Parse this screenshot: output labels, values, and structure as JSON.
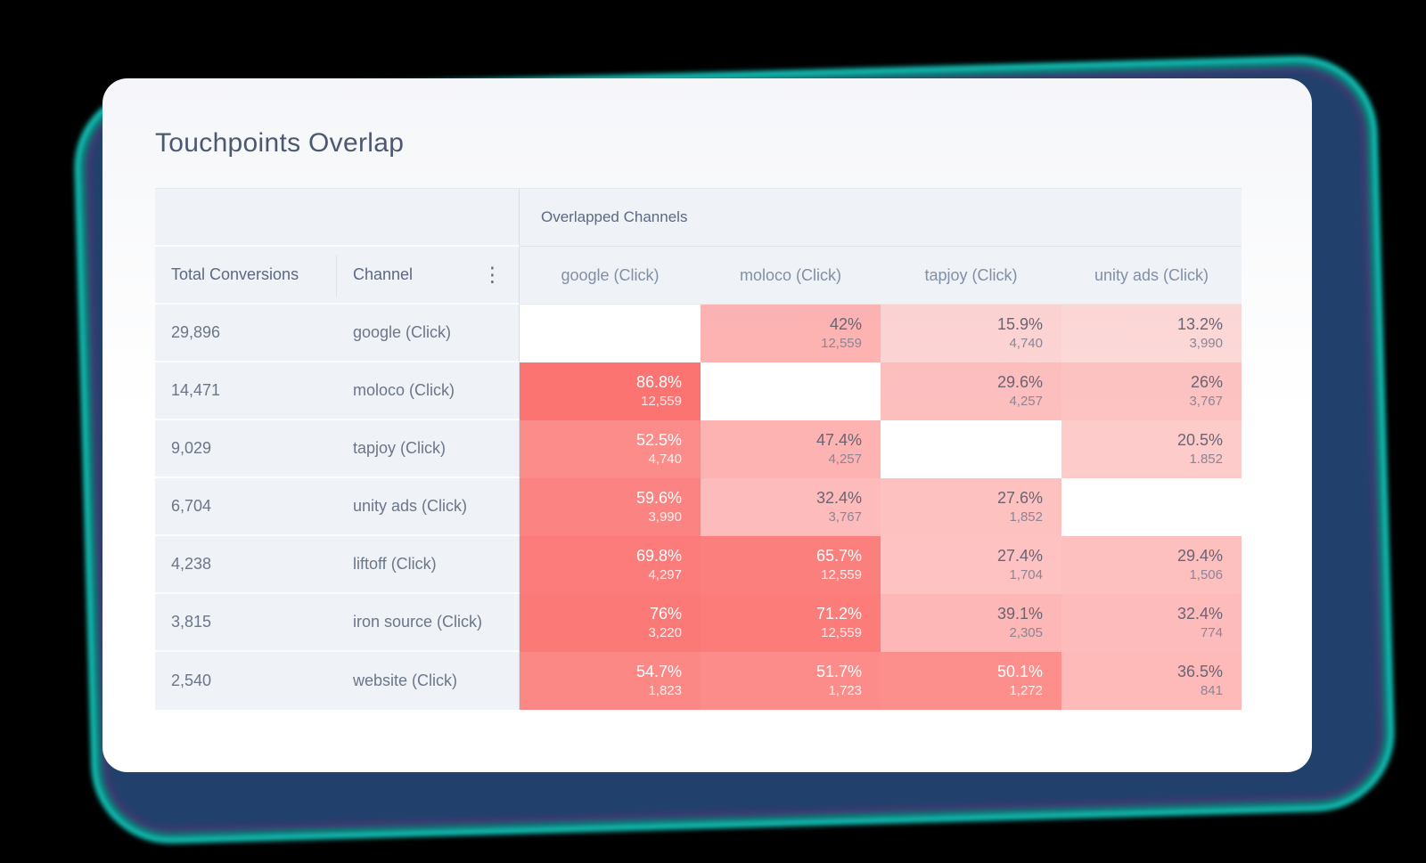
{
  "card": {
    "title": "Touchpoints Overlap"
  },
  "table": {
    "left_headers": {
      "total": "Total Conversions",
      "channel": "Channel"
    },
    "group_header": "Overlapped Channels",
    "kebab_icon": "⋮",
    "columns": [
      "google (Click)",
      "moloco (Click)",
      "tapjoy (Click)",
      "unity ads (Click)"
    ],
    "rows": [
      {
        "total": "29,896",
        "channel": "google (Click)",
        "cells": [
          null,
          {
            "pct": "42%",
            "pct_value": 42,
            "count": "12,559"
          },
          {
            "pct": "15.9%",
            "pct_value": 15.9,
            "count": "4,740"
          },
          {
            "pct": "13.2%",
            "pct_value": 13.2,
            "count": "3,990"
          }
        ]
      },
      {
        "total": "14,471",
        "channel": "moloco (Click)",
        "cells": [
          {
            "pct": "86.8%",
            "pct_value": 86.8,
            "count": "12,559"
          },
          null,
          {
            "pct": "29.6%",
            "pct_value": 29.6,
            "count": "4,257"
          },
          {
            "pct": "26%",
            "pct_value": 26,
            "count": "3,767"
          }
        ]
      },
      {
        "total": "9,029",
        "channel": "tapjoy (Click)",
        "cells": [
          {
            "pct": "52.5%",
            "pct_value": 52.5,
            "count": "4,740"
          },
          {
            "pct": "47.4%",
            "pct_value": 47.4,
            "count": "4,257"
          },
          null,
          {
            "pct": "20.5%",
            "pct_value": 20.5,
            "count": "1.852"
          }
        ]
      },
      {
        "total": "6,704",
        "channel": "unity ads (Click)",
        "cells": [
          {
            "pct": "59.6%",
            "pct_value": 59.6,
            "count": "3,990"
          },
          {
            "pct": "32.4%",
            "pct_value": 32.4,
            "count": "3,767"
          },
          {
            "pct": "27.6%",
            "pct_value": 27.6,
            "count": "1,852"
          },
          null
        ]
      },
      {
        "total": "4,238",
        "channel": "liftoff (Click)",
        "cells": [
          {
            "pct": "69.8%",
            "pct_value": 69.8,
            "count": "4,297"
          },
          {
            "pct": "65.7%",
            "pct_value": 65.7,
            "count": "12,559"
          },
          {
            "pct": "27.4%",
            "pct_value": 27.4,
            "count": "1,704"
          },
          {
            "pct": "29.4%",
            "pct_value": 29.4,
            "count": "1,506"
          }
        ]
      },
      {
        "total": "3,815",
        "channel": "iron source (Click)",
        "cells": [
          {
            "pct": "76%",
            "pct_value": 76,
            "count": "3,220"
          },
          {
            "pct": "71.2%",
            "pct_value": 71.2,
            "count": "12,559"
          },
          {
            "pct": "39.1%",
            "pct_value": 39.1,
            "count": "2,305"
          },
          {
            "pct": "32.4%",
            "pct_value": 32.4,
            "count": "774"
          }
        ]
      },
      {
        "total": "2,540",
        "channel": "website (Click)",
        "cells": [
          {
            "pct": "54.7%",
            "pct_value": 54.7,
            "count": "1,823"
          },
          {
            "pct": "51.7%",
            "pct_value": 51.7,
            "count": "1,723"
          },
          {
            "pct": "50.1%",
            "pct_value": 50.1,
            "count": "1,272"
          },
          {
            "pct": "36.5%",
            "pct_value": 36.5,
            "count": "841"
          }
        ]
      }
    ]
  },
  "heatmap": {
    "base_color_rgb": [
      250,
      85,
      82
    ],
    "white_text_threshold": 50,
    "alpha_anchors": [
      [
        0,
        0.15
      ],
      [
        13,
        0.22
      ],
      [
        16,
        0.25
      ],
      [
        20,
        0.3
      ],
      [
        27,
        0.36
      ],
      [
        32,
        0.39
      ],
      [
        37,
        0.41
      ],
      [
        42,
        0.44
      ],
      [
        48,
        0.45
      ],
      [
        50,
        0.66
      ],
      [
        55,
        0.7
      ],
      [
        60,
        0.73
      ],
      [
        70,
        0.77
      ],
      [
        87,
        0.82
      ],
      [
        100,
        0.88
      ]
    ]
  },
  "colors": {
    "page_bg": "#000000",
    "card_bg": "#ffffff",
    "header_bg": "#eff2f7",
    "glow_blue": "#21406b",
    "glow_purple": "#3b3a70",
    "glow_teal": "#0c7a76",
    "glow_cyan": "#15dcd0"
  },
  "chart_data": {
    "type": "heatmap",
    "title": "Touchpoints Overlap",
    "row_channels": [
      "google (Click)",
      "moloco (Click)",
      "tapjoy (Click)",
      "unity ads (Click)",
      "liftoff (Click)",
      "iron source (Click)",
      "website (Click)"
    ],
    "row_total_conversions": [
      29896,
      14471,
      9029,
      6704,
      4238,
      3815,
      2540
    ],
    "columns": [
      "google (Click)",
      "moloco (Click)",
      "tapjoy (Click)",
      "unity ads (Click)"
    ],
    "values_pct": [
      [
        null,
        42,
        15.9,
        13.2
      ],
      [
        86.8,
        null,
        29.6,
        26
      ],
      [
        52.5,
        47.4,
        null,
        20.5
      ],
      [
        59.6,
        32.4,
        27.6,
        null
      ],
      [
        69.8,
        65.7,
        27.4,
        29.4
      ],
      [
        76,
        71.2,
        39.1,
        32.4
      ],
      [
        54.7,
        51.7,
        50.1,
        36.5
      ]
    ],
    "values_count": [
      [
        null,
        12559,
        4740,
        3990
      ],
      [
        12559,
        null,
        4257,
        3767
      ],
      [
        4740,
        4257,
        null,
        1852
      ],
      [
        3990,
        3767,
        1852,
        null
      ],
      [
        4297,
        12559,
        1704,
        1506
      ],
      [
        3220,
        12559,
        2305,
        774
      ],
      [
        1823,
        1723,
        1272,
        841
      ]
    ],
    "legend_position": "none",
    "grid": false
  }
}
